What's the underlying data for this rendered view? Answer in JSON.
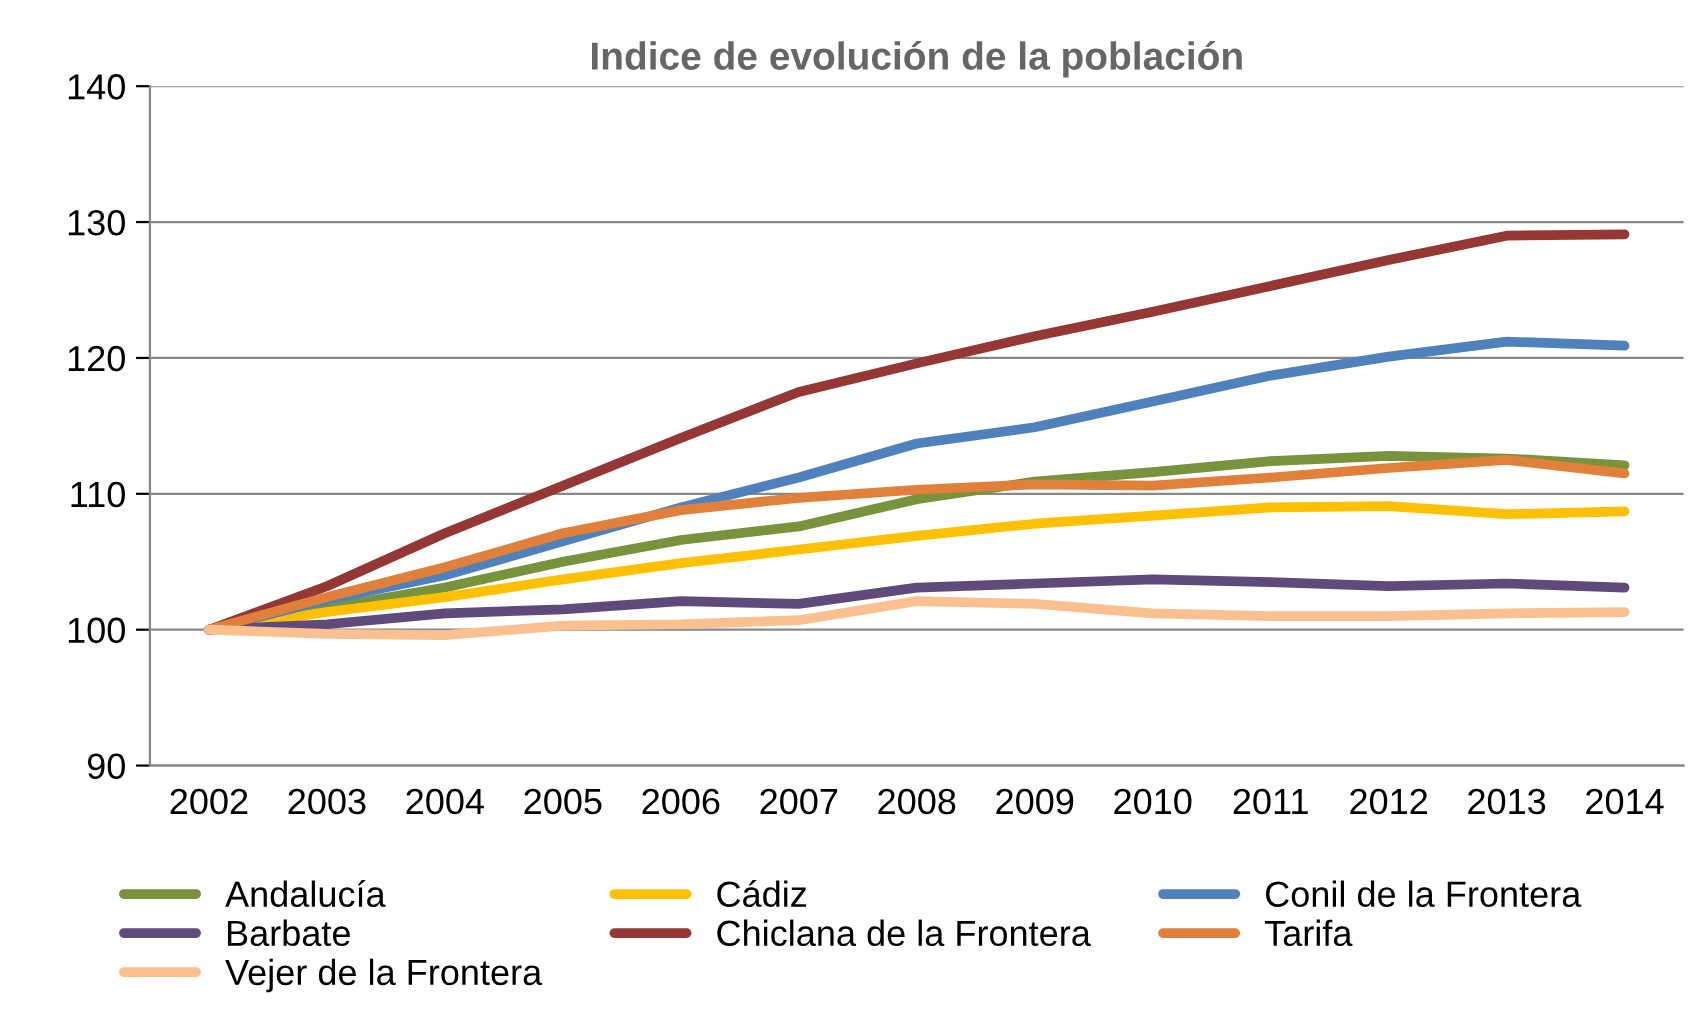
{
  "chart_data": {
    "type": "line",
    "title": "Indice de evolución de la población",
    "categories": [
      "2002",
      "2003",
      "2004",
      "2005",
      "2006",
      "2007",
      "2008",
      "2009",
      "2010",
      "2011",
      "2012",
      "2013",
      "2014"
    ],
    "series": [
      {
        "name": "Andalucía",
        "color": "#77933c",
        "values": [
          100,
          101.6,
          103.1,
          105,
          106.6,
          107.6,
          109.6,
          110.9,
          111.6,
          112.4,
          112.8,
          112.6,
          112.1
        ]
      },
      {
        "name": "Cádiz",
        "color": "#ffc000",
        "values": [
          100,
          101.3,
          102.4,
          103.7,
          104.9,
          105.9,
          106.9,
          107.8,
          108.4,
          109.0,
          109.1,
          108.5,
          108.7
        ]
      },
      {
        "name": "Conil de la Frontera",
        "color": "#4f81bd",
        "values": [
          100,
          102.2,
          104,
          106.5,
          109,
          111.2,
          113.7,
          114.9,
          116.8,
          118.7,
          120.1,
          121.2,
          120.9
        ]
      },
      {
        "name": "Barbate",
        "color": "#604a7b",
        "values": [
          100,
          100.4,
          101.2,
          101.5,
          102.1,
          101.9,
          103.1,
          103.4,
          103.7,
          103.5,
          103.2,
          103.4,
          103.1
        ]
      },
      {
        "name": "Chiclana de la Frontera",
        "color": "#953735",
        "values": [
          100,
          103.2,
          107.1,
          110.6,
          114.1,
          117.5,
          119.6,
          121.6,
          123.4,
          125.3,
          127.2,
          129.0,
          129.1
        ]
      },
      {
        "name": "Tarifa",
        "color": "#e0803a",
        "values": [
          100,
          102.4,
          104.6,
          107.1,
          108.8,
          109.7,
          110.3,
          110.7,
          110.6,
          111.2,
          111.9,
          112.5,
          111.5
        ]
      },
      {
        "name": "Vejer de la Frontera",
        "color": "#fac090",
        "values": [
          100,
          99.7,
          99.6,
          100.3,
          100.4,
          100.7,
          102.1,
          101.9,
          101.2,
          101.0,
          101.0,
          101.2,
          101.3
        ]
      }
    ],
    "ylim": [
      90,
      140
    ],
    "yticks": [
      90,
      100,
      110,
      120,
      130,
      140
    ],
    "grid": "y",
    "legend": "bottom",
    "marker": "none",
    "line_style": "solid"
  }
}
